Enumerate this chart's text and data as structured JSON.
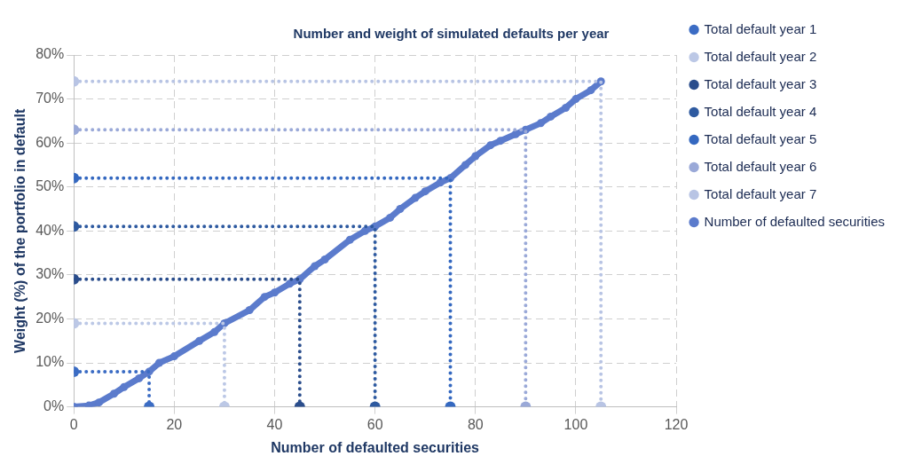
{
  "chart_data": {
    "type": "line",
    "title": "Number and weight of simulated defaults per year",
    "xlabel": "Number of defaulted securities",
    "ylabel": "Weight (%) of the portfolio in default",
    "xlim": [
      0,
      120
    ],
    "xticks": [
      0,
      20,
      40,
      60,
      80,
      100,
      120
    ],
    "ylim": [
      0,
      80
    ],
    "yticks": [
      {
        "value": 0,
        "label": "0%"
      },
      {
        "value": 10,
        "label": "10%"
      },
      {
        "value": 20,
        "label": "20%"
      },
      {
        "value": 30,
        "label": "30%"
      },
      {
        "value": 40,
        "label": "40%"
      },
      {
        "value": 50,
        "label": "50%"
      },
      {
        "value": 60,
        "label": "60%"
      },
      {
        "value": 70,
        "label": "70%"
      },
      {
        "value": 80,
        "label": "80%"
      }
    ],
    "grid": true,
    "legend": "right",
    "marker": "circle",
    "series": [
      {
        "name": "Total default year 1",
        "color": "#3b6cc4",
        "line_style": "dotted",
        "x": [
          0,
          15,
          15
        ],
        "values": [
          8,
          8,
          0
        ]
      },
      {
        "name": "Total default year 2",
        "color": "#bcc8e6",
        "line_style": "dotted",
        "x": [
          0,
          30,
          30
        ],
        "values": [
          19,
          19,
          0
        ]
      },
      {
        "name": "Total default year 3",
        "color": "#2a4d8c",
        "line_style": "dotted",
        "x": [
          0,
          45,
          45
        ],
        "values": [
          29,
          29,
          0
        ]
      },
      {
        "name": "Total default year 4",
        "color": "#2e5aa0",
        "line_style": "dotted",
        "x": [
          0,
          60,
          60
        ],
        "values": [
          41,
          41,
          0
        ]
      },
      {
        "name": "Total default year 5",
        "color": "#3468c0",
        "line_style": "dotted",
        "x": [
          0,
          75,
          75
        ],
        "values": [
          52,
          52,
          0
        ]
      },
      {
        "name": "Total default year 6",
        "color": "#9aa9d8",
        "line_style": "dotted",
        "x": [
          0,
          90,
          90
        ],
        "values": [
          63,
          63,
          0
        ]
      },
      {
        "name": "Total default year 7",
        "color": "#b8c4e4",
        "line_style": "dotted",
        "x": [
          0,
          105,
          105
        ],
        "values": [
          74,
          74,
          0
        ]
      },
      {
        "name": "Number of defaulted securities",
        "color": "#5b7bcc",
        "line_style": "solid",
        "x": [
          0,
          3,
          5,
          8,
          10,
          13,
          15,
          17,
          20,
          25,
          28,
          30,
          35,
          38,
          40,
          43,
          45,
          48,
          50,
          55,
          58,
          60,
          63,
          65,
          68,
          70,
          73,
          75,
          78,
          80,
          83,
          85,
          88,
          90,
          93,
          95,
          98,
          100,
          103,
          105
        ],
        "values": [
          0,
          0.3,
          1,
          3,
          4.5,
          6.5,
          8,
          10,
          11.5,
          15,
          17,
          19,
          22,
          25,
          26,
          28,
          29,
          32,
          33.5,
          38,
          40,
          41,
          43,
          45,
          47.5,
          49,
          51,
          52,
          55,
          57,
          59.5,
          60.5,
          62,
          63,
          64.5,
          66,
          68,
          70,
          72,
          74
        ]
      }
    ]
  }
}
